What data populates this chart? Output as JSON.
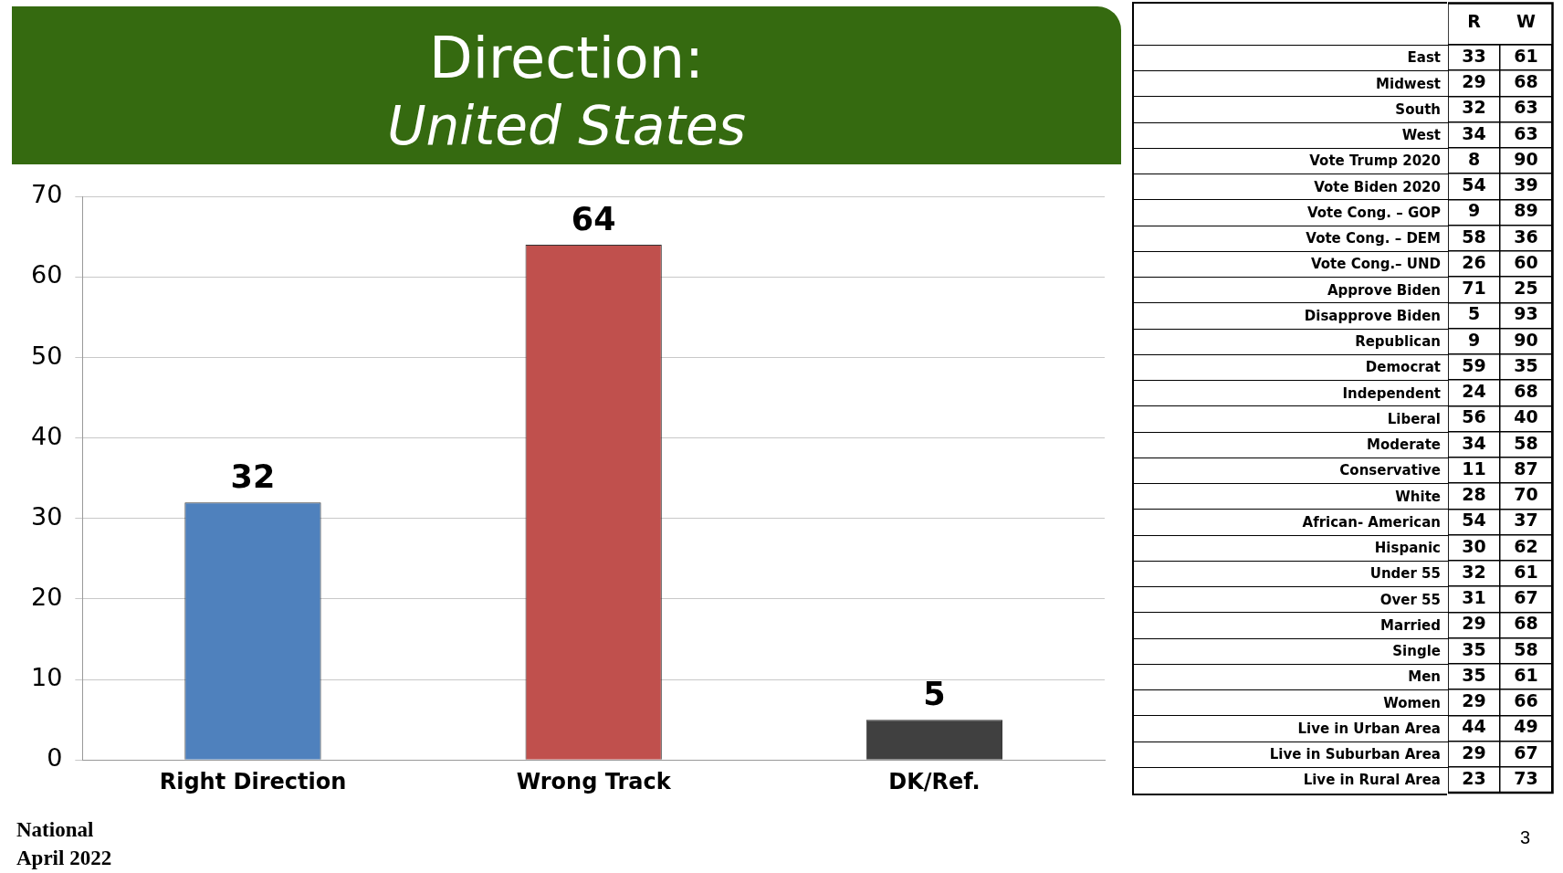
{
  "chart_data": [
    {
      "type": "bar",
      "title": "Direction:",
      "subtitle": "United States",
      "categories": [
        "Right Direction",
        "Wrong Track",
        "DK/Ref."
      ],
      "values": [
        32,
        64,
        5
      ],
      "colors": [
        "#4f81bd",
        "#c0504d",
        "#404040"
      ],
      "ylim": [
        0,
        70
      ],
      "yticks": [
        0,
        10,
        20,
        30,
        40,
        50,
        60,
        70
      ],
      "grid": "y",
      "legend": false,
      "data_labels": true,
      "annotations": [
        "National",
        "April 2022",
        "3"
      ]
    },
    {
      "type": "heatmap",
      "data_labels": true,
      "categories": [
        "R",
        "W"
      ],
      "y_categories": [
        "East",
        "Midwest",
        "South",
        "West",
        "Vote Trump 2020",
        "Vote Biden 2020",
        "Vote Cong. – GOP",
        "Vote Cong. – DEM",
        "Vote Cong.– UND",
        "Approve Biden",
        "Disapprove Biden",
        "Republican",
        "Democrat",
        "Independent",
        "Liberal",
        "Moderate",
        "Conservative",
        "White",
        "African- American",
        "Hispanic",
        "Under 55",
        "Over 55",
        "Married",
        "Single",
        "Men",
        "Women",
        "Live in Urban Area",
        "Live in Suburban Area",
        "Live in Rural Area"
      ],
      "cells": [
        [
          33,
          61
        ],
        [
          29,
          68
        ],
        [
          32,
          63
        ],
        [
          34,
          63
        ],
        [
          8,
          90
        ],
        [
          54,
          39
        ],
        [
          9,
          89
        ],
        [
          58,
          36
        ],
        [
          26,
          60
        ],
        [
          71,
          25
        ],
        [
          5,
          93
        ],
        [
          9,
          90
        ],
        [
          59,
          35
        ],
        [
          24,
          68
        ],
        [
          56,
          40
        ],
        [
          34,
          58
        ],
        [
          11,
          87
        ],
        [
          28,
          70
        ],
        [
          54,
          37
        ],
        [
          30,
          62
        ],
        [
          32,
          61
        ],
        [
          31,
          67
        ],
        [
          29,
          68
        ],
        [
          35,
          58
        ],
        [
          35,
          61
        ],
        [
          29,
          66
        ],
        [
          44,
          49
        ],
        [
          29,
          67
        ],
        [
          23,
          73
        ]
      ]
    }
  ]
}
